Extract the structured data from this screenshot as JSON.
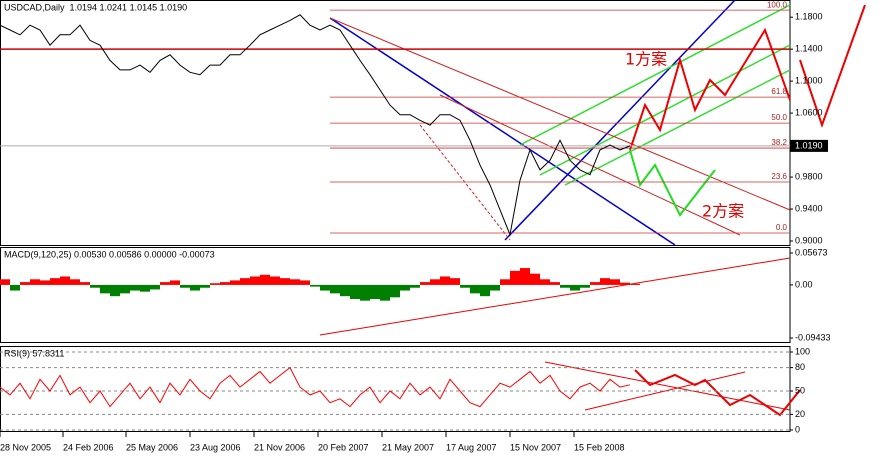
{
  "chart_data": [
    {
      "type": "line",
      "title": "USDCAD,Daily  1.0194 1.0241 1.0145 1.0190",
      "x": [
        0,
        10,
        20,
        30,
        40,
        50,
        60,
        70,
        80,
        90,
        100,
        110,
        120,
        130,
        140,
        150,
        160,
        170,
        180,
        190,
        200,
        210,
        220,
        230,
        240,
        250,
        260,
        270,
        280,
        290,
        300,
        310,
        320,
        330,
        340,
        350,
        360,
        370,
        380,
        390,
        400,
        410,
        420,
        430,
        440,
        450,
        460,
        470,
        480,
        490,
        500,
        510,
        520,
        530,
        540,
        550,
        560,
        570,
        580,
        590,
        600,
        610,
        620,
        630
      ],
      "series": [
        {
          "color": "#000000",
          "values": [
            1.17,
            1.164,
            1.158,
            1.17,
            1.164,
            1.145,
            1.158,
            1.158,
            1.17,
            1.151,
            1.145,
            1.126,
            1.114,
            1.114,
            1.12,
            1.111,
            1.126,
            1.133,
            1.12,
            1.111,
            1.108,
            1.12,
            1.12,
            1.133,
            1.133,
            1.145,
            1.158,
            1.164,
            1.17,
            1.176,
            1.183,
            1.17,
            1.164,
            1.17,
            1.164,
            1.145,
            1.126,
            1.108,
            1.089,
            1.07,
            1.058,
            1.058,
            1.051,
            1.045,
            1.058,
            1.058,
            1.051,
            1.026,
            0.995,
            0.97,
            0.939,
            0.908,
            0.976,
            1.014,
            0.989,
            1.001,
            1.026,
            1.001,
            0.989,
            0.983,
            1.014,
            1.02,
            1.014,
            1.019
          ]
        }
      ],
      "xlim": [
        0,
        790
      ],
      "xticks": [
        {
          "value": 0,
          "label": "28 Nov 2005"
        },
        {
          "value": 63,
          "label": "24 Feb 2006"
        },
        {
          "value": 126,
          "label": "25 May 2006"
        },
        {
          "value": 190,
          "label": "23 Aug 2006"
        },
        {
          "value": 254,
          "label": "21 Nov 2006"
        },
        {
          "value": 318,
          "label": "20 Feb 2007"
        },
        {
          "value": 382,
          "label": "21 May 2007"
        },
        {
          "value": 446,
          "label": "17 Aug 2007"
        },
        {
          "value": 510,
          "label": "15 Nov 2007"
        },
        {
          "value": 574,
          "label": "15 Feb 2008"
        }
      ],
      "ylim": [
        0.895,
        1.199
      ],
      "yticks": [
        {
          "value": 1.18,
          "label": "1.1800"
        },
        {
          "value": 1.14,
          "label": "1.1400"
        },
        {
          "value": 1.1,
          "label": "1.1000"
        },
        {
          "value": 1.06,
          "label": "1.0600"
        },
        {
          "value": 0.98,
          "label": "0.9800"
        },
        {
          "value": 0.94,
          "label": "0.9400"
        },
        {
          "value": 0.9,
          "label": "0.9000"
        }
      ],
      "current_price": {
        "value": 1.019,
        "label": "1.0190"
      },
      "resistance": 1.14,
      "fib_levels": [
        {
          "value": 1.1888,
          "label": "100.0"
        },
        {
          "value": 1.08,
          "label": "61.8"
        },
        {
          "value": 1.0475,
          "label": "50.0"
        },
        {
          "value": 1.0163,
          "label": "38.2"
        },
        {
          "value": 0.9738,
          "label": "23.6"
        },
        {
          "value": 0.91,
          "label": "0.0"
        }
      ],
      "annotations": [
        "1方案",
        "2方案"
      ]
    },
    {
      "type": "bar",
      "title": "MACD(9,120,25) 0.00530 0.00586 0.00000 -0.00073",
      "x": [
        0,
        10,
        20,
        30,
        40,
        50,
        60,
        70,
        80,
        90,
        100,
        110,
        120,
        130,
        140,
        150,
        160,
        170,
        180,
        190,
        200,
        210,
        220,
        230,
        240,
        250,
        260,
        270,
        280,
        290,
        300,
        310,
        320,
        330,
        340,
        350,
        360,
        370,
        380,
        390,
        400,
        410,
        420,
        430,
        440,
        450,
        460,
        470,
        480,
        490,
        500,
        510,
        520,
        530,
        540,
        550,
        560,
        570,
        580,
        590,
        600,
        610,
        620,
        630
      ],
      "values": [
        0.01,
        -0.01,
        0.005,
        0.01,
        0.008,
        0.012,
        0.015,
        0.01,
        0.005,
        -0.005,
        -0.015,
        -0.02,
        -0.015,
        -0.01,
        -0.012,
        -0.008,
        0.005,
        0.008,
        -0.005,
        -0.01,
        -0.005,
        0.003,
        0.005,
        0.008,
        0.012,
        0.015,
        0.018,
        0.015,
        0.012,
        0.01,
        0.008,
        -0.003,
        -0.01,
        -0.015,
        -0.02,
        -0.025,
        -0.028,
        -0.025,
        -0.028,
        -0.022,
        -0.01,
        -0.005,
        0.005,
        0.01,
        0.015,
        0.012,
        -0.005,
        -0.015,
        -0.02,
        -0.01,
        0.01,
        0.025,
        0.03,
        0.02,
        0.01,
        0.005,
        -0.005,
        -0.01,
        -0.005,
        0.005,
        0.012,
        0.01,
        0.004,
        0.002
      ],
      "xlim": [
        0,
        790
      ],
      "ylim": [
        -0.09433,
        0.05673
      ],
      "yticks": [
        0.05673,
        {
          "value": 0,
          "label": "0.00"
        },
        -0.09433
      ],
      "colors": {
        "positive": "#ff0000",
        "negative": "#008000"
      }
    },
    {
      "type": "line",
      "title": "RSI(9) 57.8311",
      "x": [
        0,
        10,
        20,
        30,
        40,
        50,
        60,
        70,
        80,
        90,
        100,
        110,
        120,
        130,
        140,
        150,
        160,
        170,
        180,
        190,
        200,
        210,
        220,
        230,
        240,
        250,
        260,
        270,
        280,
        290,
        300,
        310,
        320,
        330,
        340,
        350,
        360,
        370,
        380,
        390,
        400,
        410,
        420,
        430,
        440,
        450,
        460,
        470,
        480,
        490,
        500,
        510,
        520,
        530,
        540,
        550,
        560,
        570,
        580,
        590,
        600,
        610,
        620,
        630
      ],
      "series": [
        {
          "color": "#ff0000",
          "values": [
            55,
            45,
            60,
            40,
            65,
            50,
            70,
            45,
            55,
            35,
            50,
            30,
            45,
            60,
            40,
            55,
            35,
            60,
            45,
            65,
            50,
            40,
            60,
            70,
            55,
            65,
            75,
            60,
            70,
            80,
            55,
            45,
            50,
            35,
            40,
            30,
            45,
            55,
            35,
            50,
            40,
            60,
            45,
            55,
            40,
            65,
            50,
            35,
            30,
            45,
            60,
            55,
            65,
            75,
            60,
            70,
            50,
            40,
            55,
            60,
            50,
            65,
            55,
            58
          ]
        }
      ],
      "xlim": [
        0,
        790
      ],
      "ylim": [
        0,
        100
      ],
      "yticks": [
        100,
        80,
        50,
        20,
        0
      ]
    }
  ]
}
